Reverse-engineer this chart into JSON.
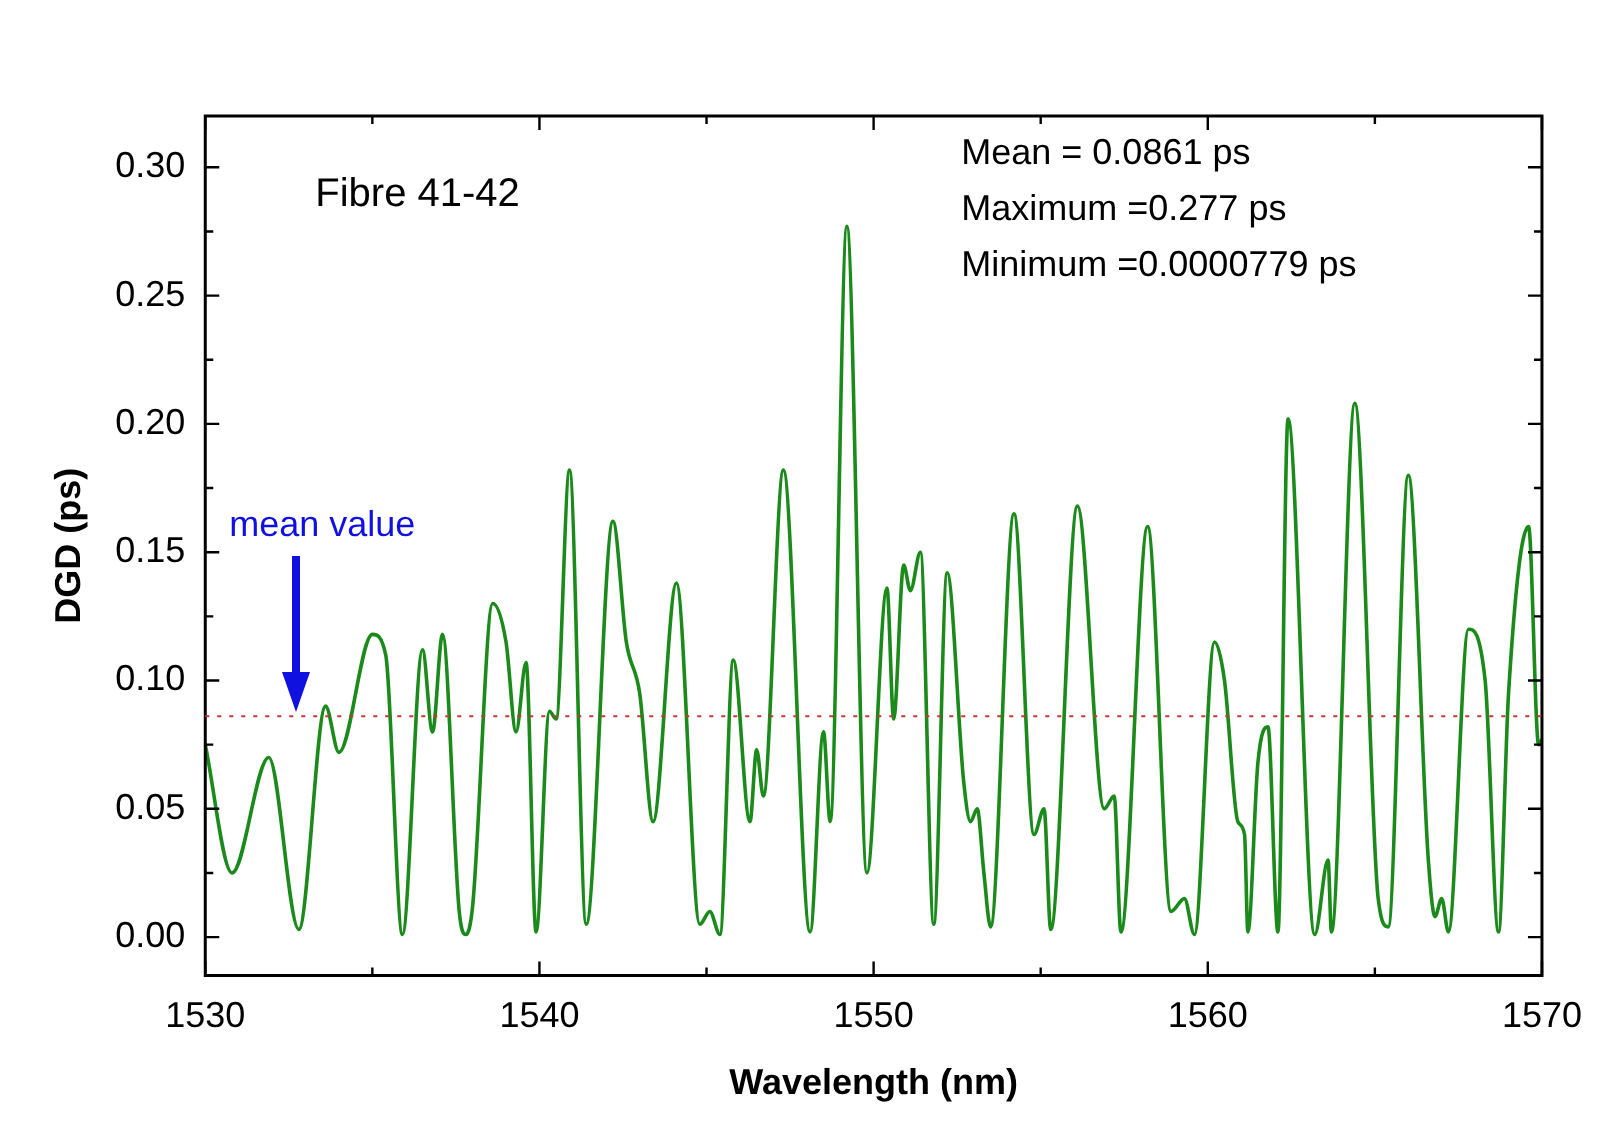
{
  "chart_data": {
    "type": "line",
    "xlabel": "Wavelength (nm)",
    "ylabel": "DGD (ps)",
    "xlim": [
      1530,
      1570
    ],
    "ylim": [
      -0.015,
      0.32
    ],
    "xticks": [
      1530,
      {
        "value": 1535,
        "label": null
      },
      1540,
      {
        "value": 1545,
        "label": null
      },
      1550,
      {
        "value": 1555,
        "label": null
      },
      1560,
      {
        "value": 1565,
        "label": null
      },
      1570
    ],
    "yticks": [
      {
        "value": 0,
        "label": "0.00"
      },
      {
        "value": 0.025,
        "label": null
      },
      0.05,
      {
        "value": 0.075,
        "label": null
      },
      {
        "value": 0.1,
        "label": "0.10"
      },
      {
        "value": 0.125,
        "label": null
      },
      0.15,
      {
        "value": 0.175,
        "label": null
      },
      {
        "value": 0.2,
        "label": "0.20"
      },
      {
        "value": 0.225,
        "label": null
      },
      0.25,
      {
        "value": 0.275,
        "label": null
      },
      {
        "value": 0.3,
        "label": "0.30"
      }
    ],
    "grid": false,
    "legend": false,
    "marker": "none",
    "line_style": "solid",
    "ref_lines": [
      {
        "axis": "y",
        "value": 0.0861,
        "color": "#cc3333",
        "line_style": "dotted"
      }
    ],
    "annotations": [
      "Fibre 41-42",
      "Mean = 0.0861 ps",
      "Maximum =0.277 ps",
      "Minimum =0.0000779 ps",
      "mean value"
    ],
    "series": [
      {
        "color": "#1a8a1a",
        "x": [
          1530.0,
          1530.8,
          1531.9,
          1532.8,
          1533.6,
          1534.0,
          1535.0,
          1535.4,
          1535.9,
          1536.5,
          1536.8,
          1537.1,
          1537.6,
          1537.8,
          1538.0,
          1538.6,
          1539.0,
          1539.3,
          1539.6,
          1539.9,
          1540.3,
          1540.5,
          1540.9,
          1541.4,
          1542.2,
          1542.6,
          1543.0,
          1543.4,
          1544.1,
          1544.8,
          1545.1,
          1545.4,
          1545.8,
          1546.3,
          1546.5,
          1546.7,
          1547.3,
          1548.1,
          1548.5,
          1548.7,
          1549.2,
          1549.8,
          1550.4,
          1550.6,
          1550.9,
          1551.1,
          1551.4,
          1551.8,
          1552.2,
          1552.7,
          1552.9,
          1553.1,
          1553.3,
          1553.5,
          1554.2,
          1554.8,
          1555.1,
          1555.3,
          1556.1,
          1556.9,
          1557.2,
          1557.4,
          1558.2,
          1558.9,
          1559.3,
          1559.6,
          1560.2,
          1560.5,
          1560.9,
          1561.1,
          1561.2,
          1561.5,
          1561.8,
          1562.1,
          1562.4,
          1563.2,
          1563.6,
          1563.7,
          1564.4,
          1565.1,
          1565.4,
          1566.0,
          1566.6,
          1566.8,
          1567.0,
          1567.2,
          1567.8,
          1568.3,
          1568.7,
          1569.0,
          1569.6,
          1569.9,
          1570.0
        ],
        "values": [
          0.075,
          0.025,
          0.07,
          0.003,
          0.09,
          0.072,
          0.118,
          0.11,
          0.001,
          0.112,
          0.08,
          0.118,
          0.01,
          0.001,
          0.012,
          0.13,
          0.115,
          0.08,
          0.107,
          0.002,
          0.088,
          0.085,
          0.182,
          0.005,
          0.162,
          0.115,
          0.095,
          0.045,
          0.138,
          0.005,
          0.01,
          0.001,
          0.108,
          0.045,
          0.073,
          0.055,
          0.182,
          0.002,
          0.08,
          0.045,
          0.277,
          0.025,
          0.136,
          0.085,
          0.145,
          0.135,
          0.15,
          0.005,
          0.142,
          0.06,
          0.045,
          0.05,
          0.025,
          0.004,
          0.165,
          0.04,
          0.05,
          0.003,
          0.168,
          0.05,
          0.055,
          0.002,
          0.16,
          0.01,
          0.015,
          0.001,
          0.115,
          0.1,
          0.045,
          0.04,
          0.002,
          0.068,
          0.082,
          0.002,
          0.202,
          0.001,
          0.03,
          0.002,
          0.208,
          0.015,
          0.004,
          0.18,
          0.03,
          0.008,
          0.015,
          0.002,
          0.12,
          0.1,
          0.002,
          0.095,
          0.16,
          0.075,
          0.077
        ]
      }
    ]
  }
}
